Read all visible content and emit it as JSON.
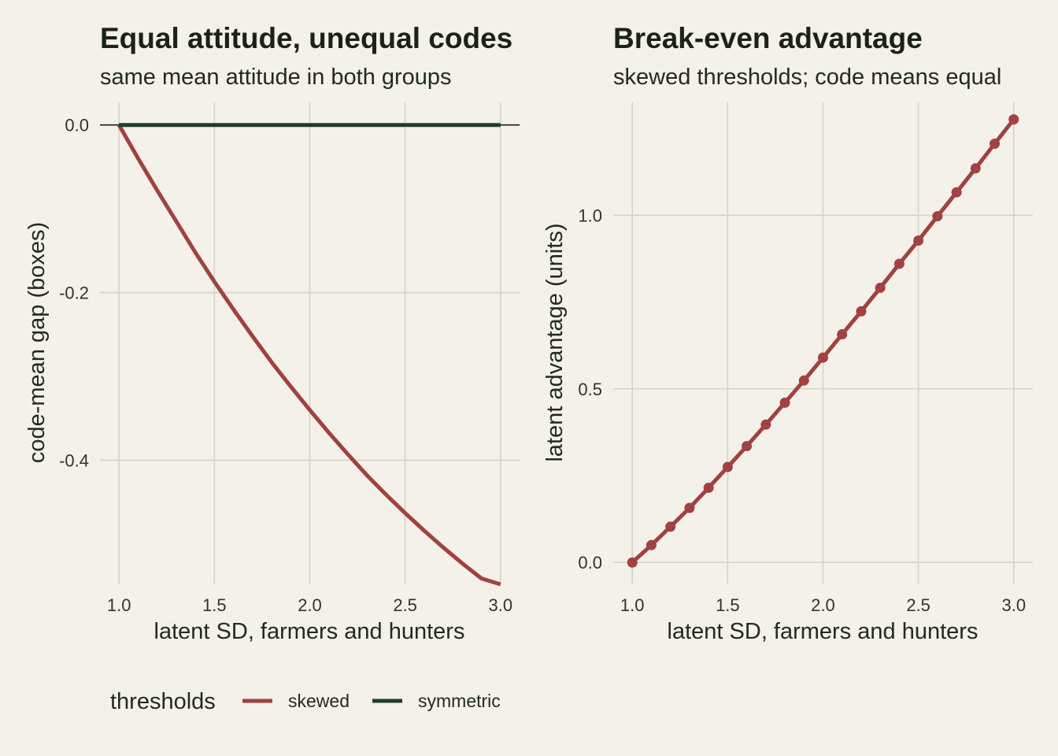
{
  "colors": {
    "skewed": "#a14142",
    "symmetric": "#1f3d2e",
    "background": "#f3f1ea",
    "grid": "#d5d5c4"
  },
  "chart_data": [
    {
      "type": "line",
      "title": "Equal attitude, unequal codes",
      "subtitle": "same mean attitude in both groups",
      "xlabel": "latent SD, farmers and hunters",
      "ylabel": "code-mean gap (boxes)",
      "xlim": [
        0.9,
        3.1
      ],
      "ylim": [
        -0.548,
        0.027
      ],
      "xticks": [
        1.0,
        1.5,
        2.0,
        2.5,
        3.0
      ],
      "xtick_labels": [
        "1.0",
        "1.5",
        "2.0",
        "2.5",
        "3.0"
      ],
      "yticks": [
        0.0,
        -0.2,
        -0.4
      ],
      "ytick_labels": [
        "0.0",
        "-0.2",
        "-0.4"
      ],
      "reference_line": 0.0,
      "grid": true,
      "series": [
        {
          "name": "skewed",
          "color": "#a14142",
          "x": [
            1.0,
            1.1,
            1.2,
            1.3,
            1.4,
            1.5,
            1.6,
            1.7,
            1.8,
            1.9,
            2.0,
            2.1,
            2.2,
            2.3,
            2.4,
            2.5,
            2.6,
            2.7,
            2.8,
            2.9,
            3.0
          ],
          "y": [
            0.0,
            -0.04,
            -0.078,
            -0.115,
            -0.152,
            -0.187,
            -0.22,
            -0.252,
            -0.283,
            -0.312,
            -0.34,
            -0.367,
            -0.393,
            -0.418,
            -0.441,
            -0.463,
            -0.484,
            -0.504,
            -0.523,
            -0.541,
            -0.548
          ]
        },
        {
          "name": "symmetric",
          "color": "#1f3d2e",
          "x": [
            1.0,
            3.0
          ],
          "y": [
            0.0,
            0.0
          ]
        }
      ]
    },
    {
      "type": "line",
      "title": "Break-even advantage",
      "subtitle": "skewed thresholds; code means equal",
      "xlabel": "latent SD, farmers and hunters",
      "ylabel": "latent advantage (units)",
      "xlim": [
        0.9,
        3.1
      ],
      "ylim": [
        -0.063,
        1.325
      ],
      "xticks": [
        1.0,
        1.5,
        2.0,
        2.5,
        3.0
      ],
      "xtick_labels": [
        "1.0",
        "1.5",
        "2.0",
        "2.5",
        "3.0"
      ],
      "yticks": [
        0.0,
        0.5,
        1.0
      ],
      "ytick_labels": [
        "0.0",
        "0.5",
        "1.0"
      ],
      "grid": true,
      "series": [
        {
          "name": "skewed",
          "color": "#a14142",
          "markers": true,
          "x": [
            1.0,
            1.1,
            1.2,
            1.3,
            1.4,
            1.5,
            1.6,
            1.7,
            1.8,
            1.9,
            2.0,
            2.1,
            2.2,
            2.3,
            2.4,
            2.5,
            2.6,
            2.7,
            2.8,
            2.9,
            3.0
          ],
          "y": [
            0.0,
            0.05,
            0.103,
            0.157,
            0.215,
            0.275,
            0.335,
            0.397,
            0.46,
            0.524,
            0.59,
            0.657,
            0.723,
            0.791,
            0.86,
            0.927,
            0.997,
            1.066,
            1.135,
            1.206,
            1.276
          ]
        }
      ]
    }
  ],
  "legend": {
    "title": "thresholds",
    "placement": "bottom",
    "items": [
      {
        "label": "skewed",
        "color": "#a14142"
      },
      {
        "label": "symmetric",
        "color": "#1f3d2e"
      }
    ]
  }
}
